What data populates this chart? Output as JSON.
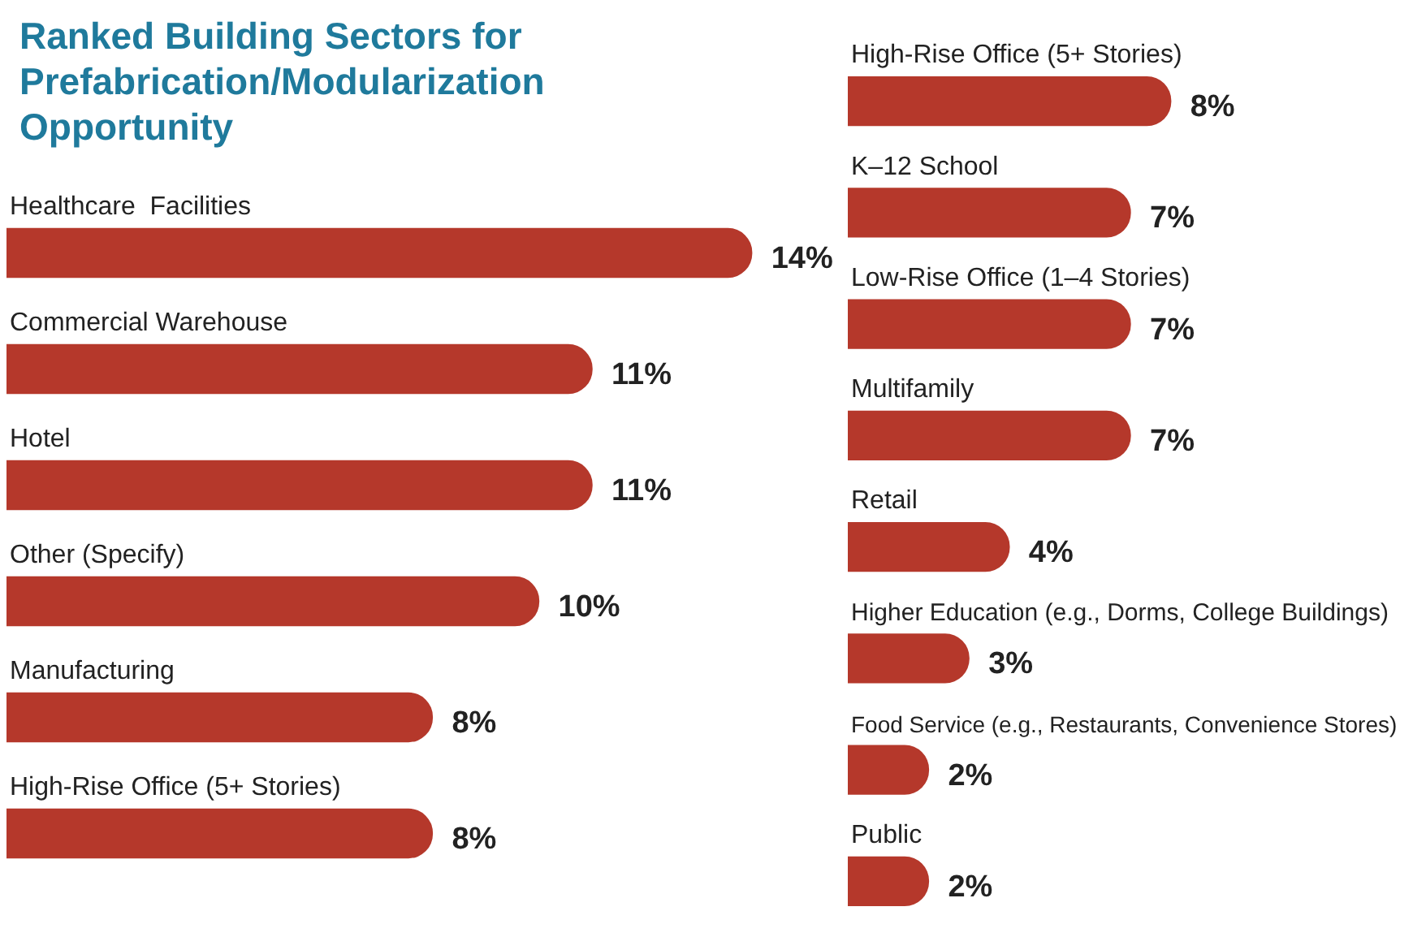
{
  "chart_data": [
    {
      "type": "bar",
      "orientation": "horizontal",
      "title": "Ranked Building Sectors for Prefabrication/Modularization Opportunity",
      "categories": [
        "Healthcare  Facilities",
        "Commercial Warehouse",
        "Hotel",
        "Other (Specify)",
        "Manufacturing",
        "High-Rise Office (5+ Stories)"
      ],
      "values": [
        14,
        11,
        11,
        10,
        8,
        8
      ],
      "value_labels": [
        "14%",
        "11%",
        "11%",
        "10%",
        "8%",
        "8%"
      ],
      "color": "#b5382b"
    },
    {
      "type": "bar",
      "orientation": "horizontal",
      "categories": [
        "High-Rise Office (5+ Stories)",
        "K–12 School",
        "Low-Rise Office (1–4 Stories)",
        "Multifamily",
        "Retail",
        "Higher Education (e.g., Dorms, College Buildings)",
        "Food Service (e.g., Restaurants, Convenience Stores)",
        "Public"
      ],
      "values": [
        8,
        7,
        7,
        7,
        4,
        3,
        2,
        2
      ],
      "value_labels": [
        "8%",
        "7%",
        "7%",
        "7%",
        "4%",
        "3%",
        "2%",
        "2%"
      ],
      "color": "#b5382b"
    }
  ]
}
